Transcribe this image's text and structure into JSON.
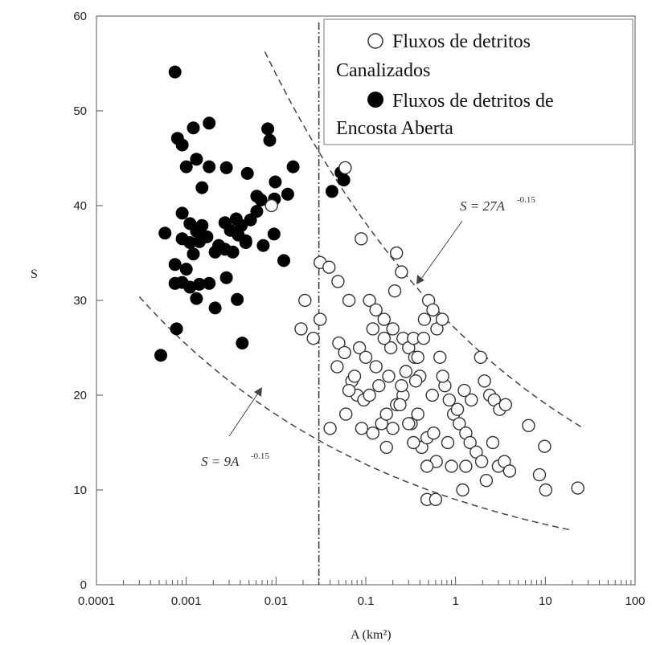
{
  "chart_data": {
    "type": "scatter",
    "ylabel": "S",
    "xlabel": "A (km²)",
    "xscale": "log",
    "xlim": [
      0.0001,
      100
    ],
    "ylim": [
      0,
      60
    ],
    "x_ticks": [
      "0.0001",
      "0.001",
      "0.01",
      "0.1",
      "1",
      "10",
      "100"
    ],
    "y_ticks": [
      "0",
      "10",
      "20",
      "30",
      "40",
      "50",
      "60"
    ],
    "legend": {
      "placement": "top-right",
      "open_line1": "Fluxos de detritos",
      "open_line2": "Canalizados",
      "filled_line1": "Fluxos de detritos de",
      "filled_line2": "Encosta Aberta"
    },
    "divider_x": 0.03,
    "annotations": {
      "upper": {
        "text": "S = 27A",
        "exp": "-0.15"
      },
      "lower": {
        "text": "S = 9A",
        "exp": "-0.15"
      }
    },
    "curves": [
      {
        "coef": 27,
        "exponent": -0.15,
        "x_range": [
          0.0075,
          25
        ]
      },
      {
        "coef": 9,
        "exponent": -0.15,
        "x_range": [
          0.0003,
          20
        ]
      }
    ],
    "series": [
      {
        "name": "Fluxos de detritos de Encosta Aberta",
        "marker": "filled",
        "points": [
          [
            0.00075,
            54.1
          ],
          [
            0.0012,
            48.2
          ],
          [
            0.0018,
            48.7
          ],
          [
            0.0008,
            47.1
          ],
          [
            0.0009,
            46.4
          ],
          [
            0.0013,
            44.9
          ],
          [
            0.001,
            44.1
          ],
          [
            0.0018,
            44.1
          ],
          [
            0.0028,
            44
          ],
          [
            0.0048,
            43.4
          ],
          [
            0.0015,
            41.9
          ],
          [
            0.0061,
            41
          ],
          [
            0.0068,
            40.6
          ],
          [
            0.0098,
            42.5
          ],
          [
            0.0135,
            41.2
          ],
          [
            0.0155,
            44.1
          ],
          [
            0.0081,
            48.1
          ],
          [
            0.0085,
            46.9
          ],
          [
            0.0096,
            40.7
          ],
          [
            0.00058,
            37.1
          ],
          [
            0.0009,
            39.2
          ],
          [
            0.0011,
            38.1
          ],
          [
            0.0013,
            37.3
          ],
          [
            0.0015,
            37.9
          ],
          [
            0.0009,
            36.5
          ],
          [
            0.0011,
            36.1
          ],
          [
            0.0014,
            36.2
          ],
          [
            0.0017,
            36.7
          ],
          [
            0.0027,
            38.2
          ],
          [
            0.0031,
            37.4
          ],
          [
            0.0036,
            38.6
          ],
          [
            0.0041,
            37.9
          ],
          [
            0.0046,
            36.3
          ],
          [
            0.0052,
            38.5
          ],
          [
            0.0061,
            39.4
          ],
          [
            0.0072,
            35.8
          ],
          [
            0.0095,
            37
          ],
          [
            0.0021,
            35.1
          ],
          [
            0.0023,
            35.8
          ],
          [
            0.0027,
            35.4
          ],
          [
            0.0033,
            35.1
          ],
          [
            0.0038,
            36.9
          ],
          [
            0.0046,
            36.1
          ],
          [
            0.0012,
            34.9
          ],
          [
            0.00075,
            33.8
          ],
          [
            0.001,
            33.3
          ],
          [
            0.00075,
            31.8
          ],
          [
            0.0009,
            31.9
          ],
          [
            0.0011,
            31.4
          ],
          [
            0.0014,
            31.7
          ],
          [
            0.0018,
            31.8
          ],
          [
            0.0028,
            32.4
          ],
          [
            0.0013,
            30.2
          ],
          [
            0.0021,
            29.2
          ],
          [
            0.0037,
            30.1
          ],
          [
            0.0122,
            34.2
          ],
          [
            0.00078,
            27
          ],
          [
            0.00052,
            24.2
          ],
          [
            0.0042,
            25.5
          ],
          [
            0.042,
            41.5
          ],
          [
            0.053,
            43.5
          ],
          [
            0.057,
            42.7
          ]
        ]
      },
      {
        "name": "Fluxos de detritos Canalizados",
        "marker": "open",
        "points": [
          [
            0.059,
            44
          ],
          [
            0.0089,
            40
          ],
          [
            0.031,
            34
          ],
          [
            0.039,
            33.5
          ],
          [
            0.049,
            32
          ],
          [
            0.089,
            36.5
          ],
          [
            0.021,
            30
          ],
          [
            0.031,
            28
          ],
          [
            0.026,
            26
          ],
          [
            0.019,
            27
          ],
          [
            0.065,
            30
          ],
          [
            0.11,
            30
          ],
          [
            0.13,
            29
          ],
          [
            0.16,
            28
          ],
          [
            0.12,
            27
          ],
          [
            0.22,
            35
          ],
          [
            0.25,
            33
          ],
          [
            0.21,
            31
          ],
          [
            0.2,
            27
          ],
          [
            0.26,
            26
          ],
          [
            0.3,
            25
          ],
          [
            0.35,
            24
          ],
          [
            0.4,
            22
          ],
          [
            0.45,
            28
          ],
          [
            0.5,
            30
          ],
          [
            0.56,
            29
          ],
          [
            0.62,
            27
          ],
          [
            0.71,
            28
          ],
          [
            0.05,
            25.5
          ],
          [
            0.058,
            24.5
          ],
          [
            0.048,
            23
          ],
          [
            0.085,
            25
          ],
          [
            0.1,
            24
          ],
          [
            0.13,
            23
          ],
          [
            0.07,
            21.5
          ],
          [
            0.08,
            20
          ],
          [
            0.095,
            19.5
          ],
          [
            0.06,
            18
          ],
          [
            0.04,
            16.5
          ],
          [
            0.09,
            16.5
          ],
          [
            0.12,
            16
          ],
          [
            0.15,
            17
          ],
          [
            0.17,
            18
          ],
          [
            0.22,
            19
          ],
          [
            0.26,
            20
          ],
          [
            0.32,
            17
          ],
          [
            0.38,
            18
          ],
          [
            0.42,
            14.5
          ],
          [
            0.48,
            15.5
          ],
          [
            0.57,
            16
          ],
          [
            0.61,
            13
          ],
          [
            0.76,
            21
          ],
          [
            0.85,
            19.5
          ],
          [
            0.95,
            18
          ],
          [
            1.1,
            17
          ],
          [
            1.3,
            16
          ],
          [
            1.45,
            15
          ],
          [
            1.7,
            14
          ],
          [
            1.95,
            13
          ],
          [
            2.2,
            11
          ],
          [
            2.6,
            15
          ],
          [
            3,
            12.5
          ],
          [
            3.5,
            13
          ],
          [
            4,
            12
          ],
          [
            1.9,
            24
          ],
          [
            2.1,
            21.5
          ],
          [
            2.4,
            20
          ],
          [
            2.7,
            19.5
          ],
          [
            3.1,
            18.5
          ],
          [
            3.6,
            19
          ],
          [
            1.5,
            19.5
          ],
          [
            1.25,
            20.5
          ],
          [
            1.05,
            18.5
          ],
          [
            1.3,
            12.5
          ],
          [
            1.2,
            10
          ],
          [
            0.48,
            9
          ],
          [
            0.6,
            9
          ],
          [
            6.5,
            16.8
          ],
          [
            8.6,
            11.6
          ],
          [
            9.8,
            14.6
          ],
          [
            10.1,
            10
          ],
          [
            23,
            10.2
          ],
          [
            0.3,
            17
          ],
          [
            0.25,
            21
          ],
          [
            0.18,
            22
          ],
          [
            0.14,
            21
          ],
          [
            0.11,
            20
          ],
          [
            0.28,
            22.5
          ],
          [
            0.36,
            21.5
          ],
          [
            0.24,
            19
          ],
          [
            0.19,
            25
          ],
          [
            0.16,
            26
          ],
          [
            0.34,
            26
          ],
          [
            0.38,
            24
          ],
          [
            0.44,
            26
          ],
          [
            0.67,
            24
          ],
          [
            0.72,
            22
          ],
          [
            0.55,
            20
          ],
          [
            0.065,
            20.5
          ],
          [
            0.075,
            22
          ],
          [
            0.17,
            14.5
          ],
          [
            0.2,
            16.5
          ],
          [
            0.34,
            15
          ],
          [
            0.48,
            12.5
          ],
          [
            0.82,
            15
          ],
          [
            0.9,
            12.5
          ]
        ]
      }
    ]
  }
}
